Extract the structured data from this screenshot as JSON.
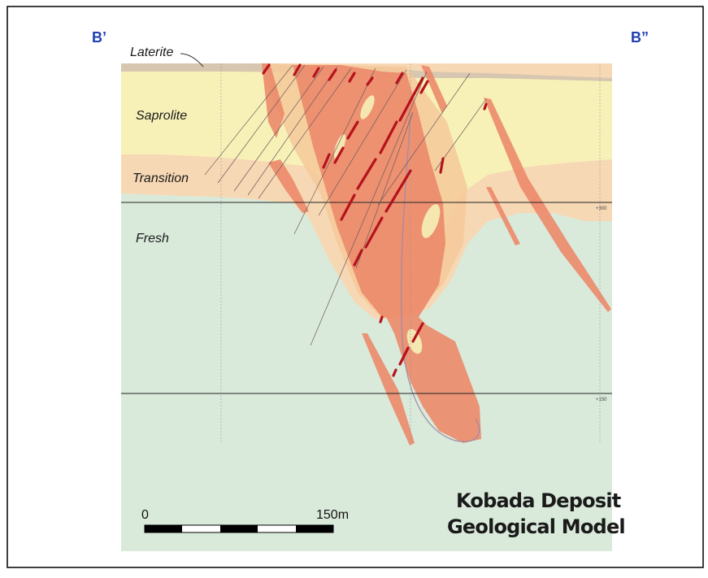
{
  "section": {
    "left_label": "B’",
    "right_label": "B”"
  },
  "layers": {
    "laterite": "Laterite",
    "saprolite": "Saprolite",
    "transition": "Transition",
    "fresh": "Fresh"
  },
  "elevations": {
    "upper": "+300",
    "lower": "+150"
  },
  "scale_bar": {
    "start_label": "0",
    "end_label": "150m",
    "segments": 5
  },
  "title": {
    "line1": "Kobada Deposit",
    "line2": "Geological Model"
  },
  "colors": {
    "section_label": "#1f3fae",
    "fresh": "#d9eadb",
    "transition": "#f7d8b4",
    "saprolite": "#f7f1b8",
    "laterite": "#d7c6b0",
    "mineralisation": "#ec8a6b",
    "oxide_halo": "#f6c99a",
    "drill_assay": "#b5121b"
  }
}
